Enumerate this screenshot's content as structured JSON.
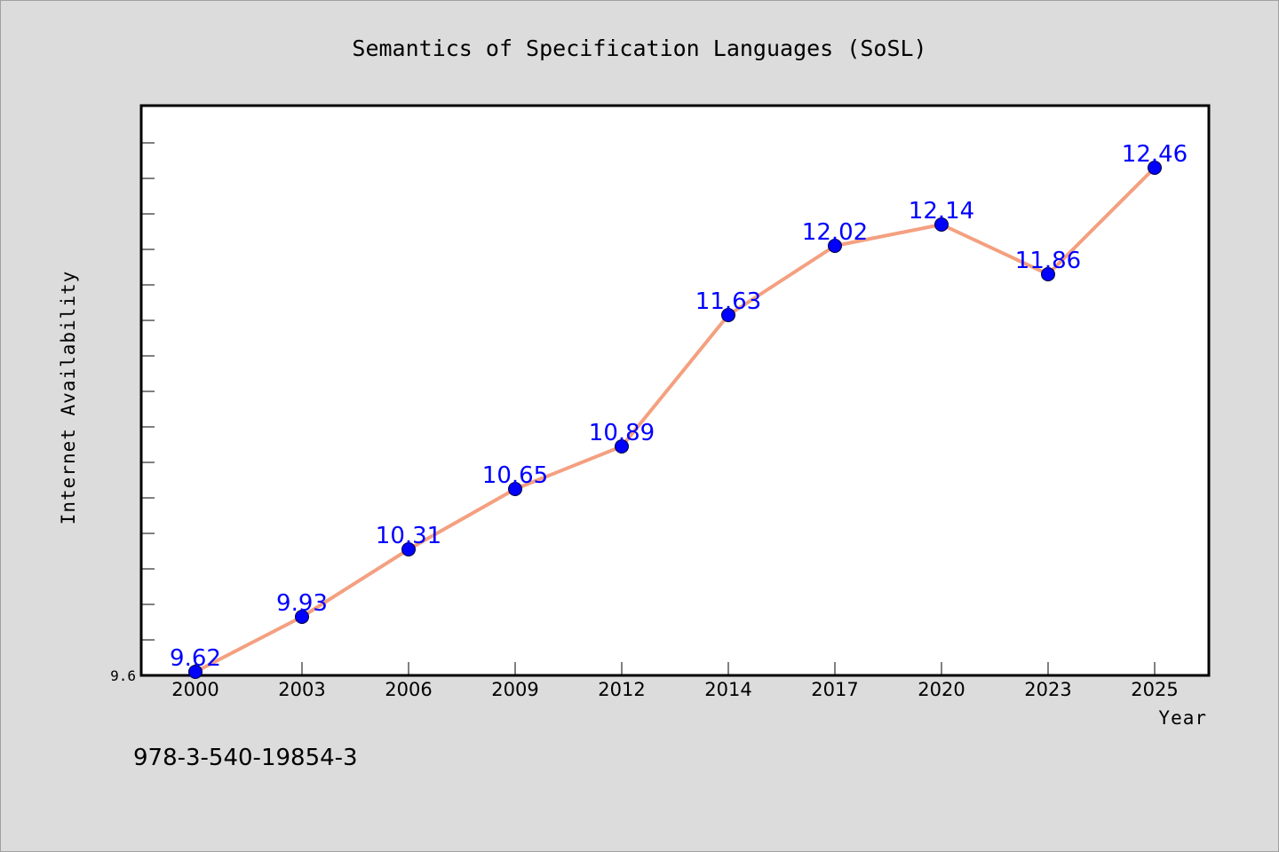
{
  "chart_data": {
    "type": "line",
    "title": "Semantics of Specification Languages (SoSL)",
    "xlabel": "Year",
    "ylabel": "Internet Availability",
    "categories": [
      "2000",
      "2003",
      "2006",
      "2009",
      "2012",
      "2014",
      "2017",
      "2020",
      "2023",
      "2025"
    ],
    "series": [
      {
        "values": [
          9.62,
          9.93,
          10.31,
          10.65,
          10.89,
          11.63,
          12.02,
          12.14,
          11.86,
          12.46
        ]
      }
    ],
    "data_labels": [
      "9.62",
      "9.93",
      "10.31",
      "10.65",
      "10.89",
      "11.63",
      "12.02",
      "12.14",
      "11.86",
      "12.46"
    ],
    "ylim": [
      9.6,
      12.81
    ],
    "y_ticks_labeled": [
      "9.6"
    ],
    "grid": false,
    "legend": "none",
    "colors": {
      "line": "#f4a080",
      "marker": "#0000ff",
      "data_label": "#0000ff",
      "background": "#dcdcdc",
      "plot_area": "#ffffff"
    }
  },
  "footer": {
    "isbn": "978-3-540-19854-3"
  }
}
